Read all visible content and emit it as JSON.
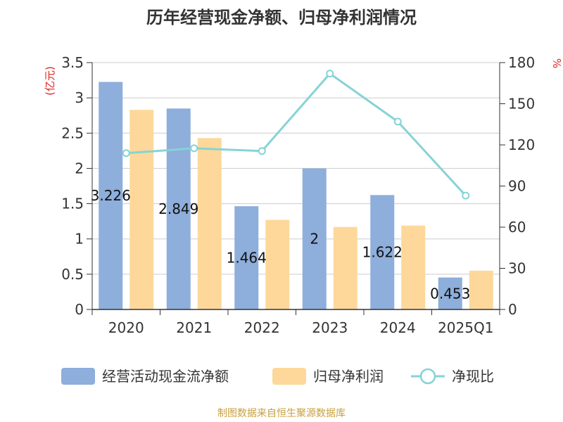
{
  "title": "历年经营现金净额、归母净利润情况",
  "source": "制图数据来自恒生聚源数据库",
  "chart_data": {
    "type": "bar",
    "title": "历年经营现金净额、归母净利润情况",
    "categories": [
      "2020",
      "2021",
      "2022",
      "2023",
      "2024",
      "2025Q1"
    ],
    "y_left": {
      "unit": "(亿元)",
      "ylim": [
        0,
        3.5
      ],
      "ticks": [
        "0",
        "0.5",
        "1",
        "1.5",
        "2",
        "2.5",
        "3",
        "3.5"
      ]
    },
    "y_right": {
      "unit": "%",
      "ylim": [
        0,
        180
      ],
      "ticks": [
        "0",
        "30",
        "60",
        "90",
        "120",
        "150",
        "180"
      ]
    },
    "series": [
      {
        "name": "经营活动现金流净额",
        "type": "bar",
        "axis": "left",
        "color": "#8eaedb",
        "values": [
          3.226,
          2.849,
          1.464,
          2,
          1.622,
          0.453
        ],
        "labels": [
          "3.226",
          "2.849",
          "1.464",
          "2",
          "1.622",
          "0.453"
        ]
      },
      {
        "name": "归母净利润",
        "type": "bar",
        "axis": "left",
        "color": "#fdd89a",
        "values": [
          2.83,
          2.43,
          1.27,
          1.17,
          1.19,
          0.55
        ]
      },
      {
        "name": "净现比",
        "type": "line",
        "axis": "right",
        "color": "#86d3d6",
        "values": [
          114,
          117.5,
          115.5,
          172,
          137,
          83
        ]
      }
    ],
    "grid": true,
    "legend": "bottom"
  }
}
